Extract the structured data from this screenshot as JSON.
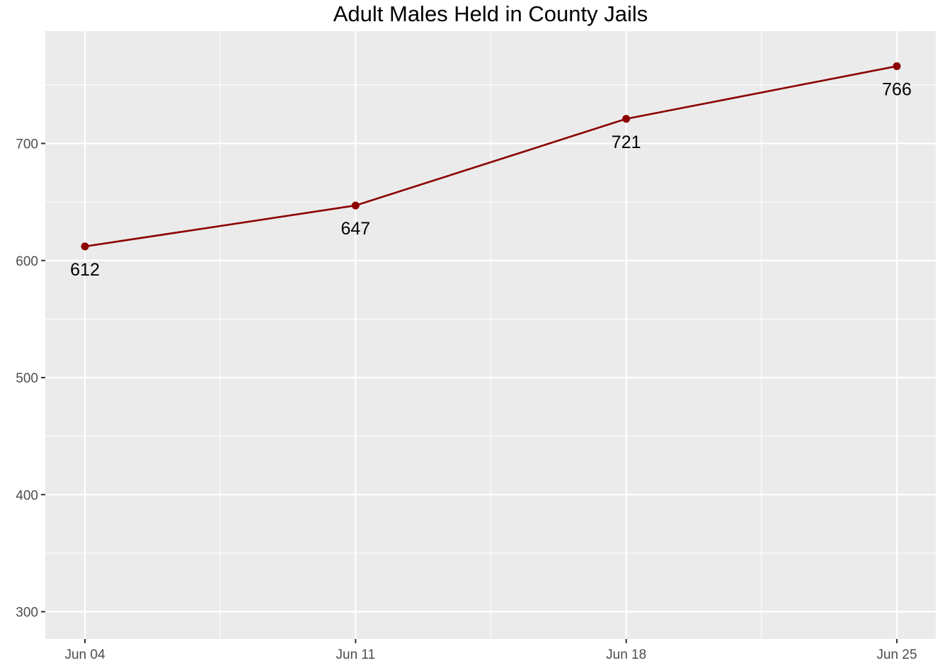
{
  "chart_data": {
    "type": "line",
    "title": "Adult Males Held in County Jails",
    "xlabel": "",
    "ylabel": "",
    "x": [
      "2020-06-04",
      "2020-06-11",
      "2020-06-18",
      "2020-06-25"
    ],
    "x_tick_labels": [
      "Jun 04",
      "Jun 11",
      "Jun 18",
      "Jun 25"
    ],
    "series": [
      {
        "values": [
          612,
          647,
          721,
          766
        ],
        "color": "#8B0000"
      }
    ],
    "data_labels": [
      "612",
      "647",
      "721",
      "766"
    ],
    "y_ticks": [
      300,
      400,
      500,
      600,
      700
    ],
    "ylim": [
      280,
      790
    ],
    "grid": true,
    "panel_background": "#EBEBEB",
    "grid_color": "#FFFFFF"
  }
}
